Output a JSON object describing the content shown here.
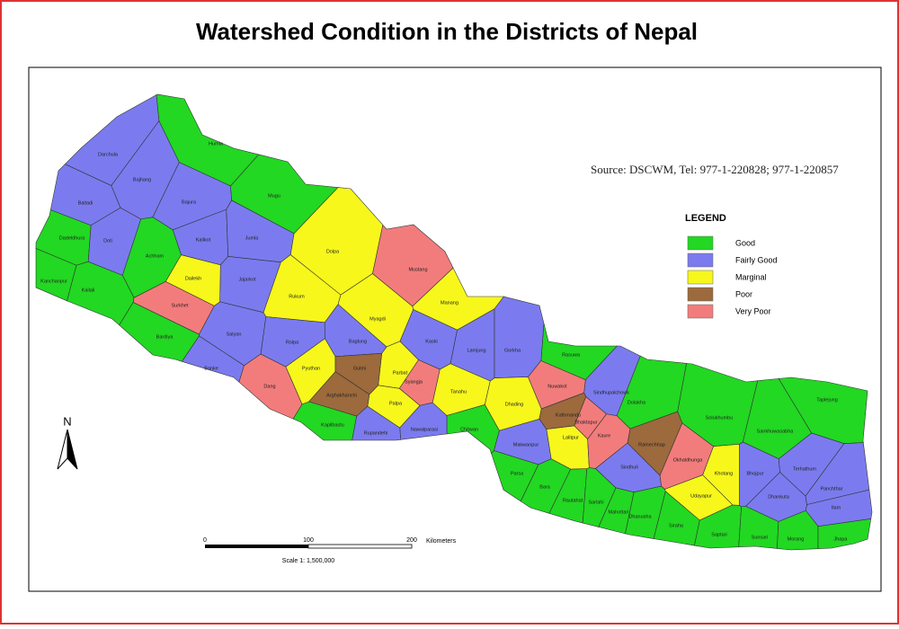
{
  "title": "Watershed Condition in the Districts of Nepal",
  "source": "Source: DSCWM, Tel: 977-1-220828; 977-1-220857",
  "legend": {
    "title": "LEGEND",
    "classes": [
      {
        "label": "Good",
        "color": "#22d822",
        "districts": [
          "Humla",
          "Mugu",
          "Achham",
          "Dadeldhura",
          "Kanchanpur",
          "Kailali",
          "Bardiya",
          "Kapilbastu",
          "Chitwan",
          "Dolakha",
          "Solukhumbu",
          "Sankhuwasabha",
          "Taplejung",
          "Parsa",
          "Bara",
          "Rautahat",
          "Sarlahi",
          "Mahottari",
          "Dhanusha",
          "Siraha",
          "Saptari",
          "Sunsari",
          "Morang",
          "Jhapa",
          "Rasuwa"
        ]
      },
      {
        "label": "Fairly Good",
        "color": "#7b7bef",
        "districts": [
          "Darchula",
          "Baitadi",
          "Bajhang",
          "Bajura",
          "Kalikot",
          "Jumla",
          "Doti",
          "Jajarkot",
          "Salyan",
          "Rolpa",
          "Banke",
          "Baglung",
          "Kaski",
          "Lamjung",
          "Gorkha",
          "Nawalparasi",
          "Rupandehi",
          "Makwanpur",
          "Sindhuli",
          "Bhojpur",
          "Dhankuta",
          "Terhathum",
          "Panchthar",
          "Ilam",
          "Sindhupalchowk"
        ]
      },
      {
        "label": "Marginal",
        "color": "#f7f71c",
        "districts": [
          "Dailekh",
          "Dolpa",
          "Rukum",
          "Myagdi",
          "Manang",
          "Pyuthan",
          "Parbat",
          "Tanahu",
          "Dhading",
          "Palpa",
          "Lalitpur",
          "Khotang",
          "Udayapur"
        ]
      },
      {
        "label": "Poor",
        "color": "#9c6a3c",
        "districts": [
          "Gulmi",
          "Arghakhanchi",
          "Kathmandu",
          "Ramechhap"
        ]
      },
      {
        "label": "Very Poor",
        "color": "#f27c7c",
        "districts": [
          "Surkhet",
          "Dang",
          "Mustang",
          "Syangja",
          "Nuwakot",
          "Bhaktapur",
          "Kavre",
          "Okhaldhunga"
        ]
      }
    ]
  },
  "scale_bar": {
    "ticks": [
      "0",
      "100",
      "200"
    ],
    "unit": "Kilometers",
    "scale": "Scale 1: 1,500,000"
  },
  "north": "N"
}
